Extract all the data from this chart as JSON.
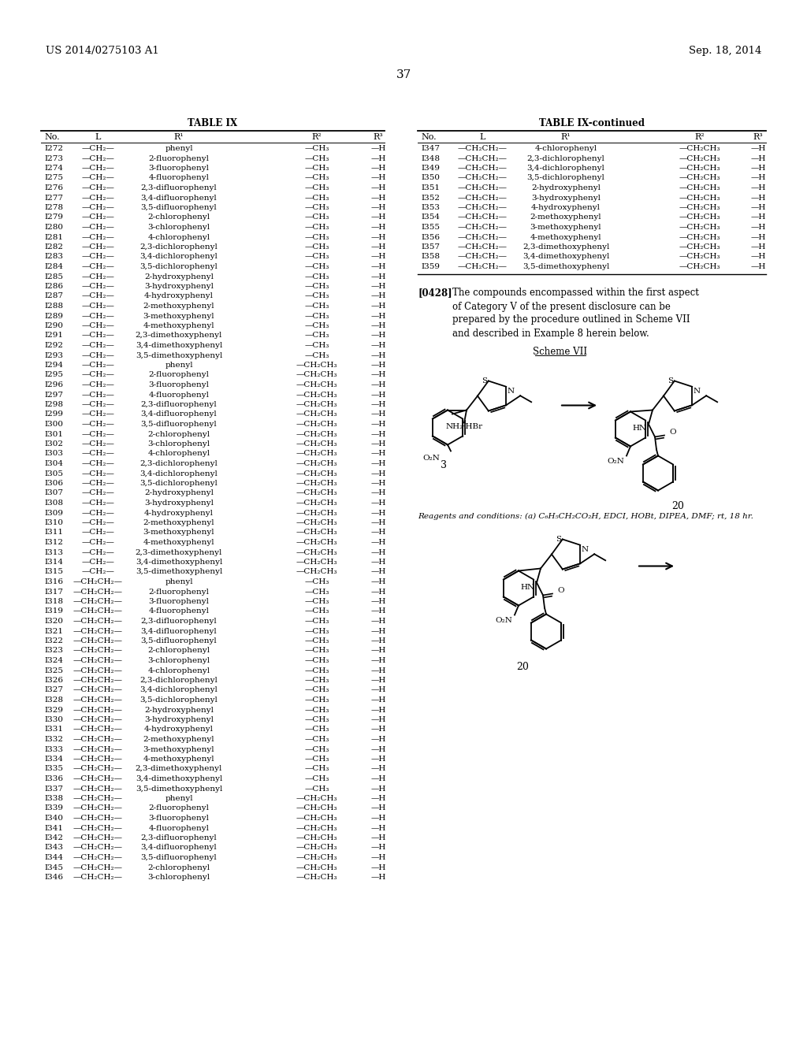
{
  "page_number": "37",
  "header_left": "US 2014/0275103 A1",
  "header_right": "Sep. 18, 2014",
  "table_left_title": "TABLE IX",
  "table_right_title": "TABLE IX-continued",
  "paragraph_num": "[0428]",
  "paragraph_text": "The compounds encompassed within the first aspect of Category V of the present disclosure can be prepared by the procedure outlined in Scheme VII and described in Example 8 herein below.",
  "scheme_label": "Scheme VII",
  "reagents_text": "Reagents and conditions: (a) C₆H₅CH₂CO₂H, EDCI, HOBt, DIPEA, DMF; rt, 18 hr.",
  "left_table_rows": [
    [
      "I272",
      "—CH₂—",
      "phenyl",
      "—CH₃",
      "—H"
    ],
    [
      "I273",
      "—CH₂—",
      "2-fluorophenyl",
      "—CH₃",
      "—H"
    ],
    [
      "I274",
      "—CH₂—",
      "3-fluorophenyl",
      "—CH₃",
      "—H"
    ],
    [
      "I275",
      "—CH₂—",
      "4-fluorophenyl",
      "—CH₃",
      "—H"
    ],
    [
      "I276",
      "—CH₂—",
      "2,3-difluorophenyl",
      "—CH₃",
      "—H"
    ],
    [
      "I277",
      "—CH₂—",
      "3,4-difluorophenyl",
      "—CH₃",
      "—H"
    ],
    [
      "I278",
      "—CH₂—",
      "3,5-difluorophenyl",
      "—CH₃",
      "—H"
    ],
    [
      "I279",
      "—CH₂—",
      "2-chlorophenyl",
      "—CH₃",
      "—H"
    ],
    [
      "I280",
      "—CH₂—",
      "3-chlorophenyl",
      "—CH₃",
      "—H"
    ],
    [
      "I281",
      "—CH₂—",
      "4-chlorophenyl",
      "—CH₃",
      "—H"
    ],
    [
      "I282",
      "—CH₂—",
      "2,3-dichlorophenyl",
      "—CH₃",
      "—H"
    ],
    [
      "I283",
      "—CH₂—",
      "3,4-dichlorophenyl",
      "—CH₃",
      "—H"
    ],
    [
      "I284",
      "—CH₂—",
      "3,5-dichlorophenyl",
      "—CH₃",
      "—H"
    ],
    [
      "I285",
      "—CH₂—",
      "2-hydroxyphenyl",
      "—CH₃",
      "—H"
    ],
    [
      "I286",
      "—CH₂—",
      "3-hydroxyphenyl",
      "—CH₃",
      "—H"
    ],
    [
      "I287",
      "—CH₂—",
      "4-hydroxyphenyl",
      "—CH₃",
      "—H"
    ],
    [
      "I288",
      "—CH₂—",
      "2-methoxyphenyl",
      "—CH₃",
      "—H"
    ],
    [
      "I289",
      "—CH₂—",
      "3-methoxyphenyl",
      "—CH₃",
      "—H"
    ],
    [
      "I290",
      "—CH₂—",
      "4-methoxyphenyl",
      "—CH₃",
      "—H"
    ],
    [
      "I291",
      "—CH₂—",
      "2,3-dimethoxyphenyl",
      "—CH₃",
      "—H"
    ],
    [
      "I292",
      "—CH₂—",
      "3,4-dimethoxyphenyl",
      "—CH₃",
      "—H"
    ],
    [
      "I293",
      "—CH₂—",
      "3,5-dimethoxyphenyl",
      "—CH₃",
      "—H"
    ],
    [
      "I294",
      "—CH₂—",
      "phenyl",
      "—CH₂CH₃",
      "—H"
    ],
    [
      "I295",
      "—CH₂—",
      "2-fluorophenyl",
      "—CH₂CH₃",
      "—H"
    ],
    [
      "I296",
      "—CH₂—",
      "3-fluorophenyl",
      "—CH₂CH₃",
      "—H"
    ],
    [
      "I297",
      "—CH₂—",
      "4-fluorophenyl",
      "—CH₂CH₃",
      "—H"
    ],
    [
      "I298",
      "—CH₂—",
      "2,3-difluorophenyl",
      "—CH₂CH₃",
      "—H"
    ],
    [
      "I299",
      "—CH₂—",
      "3,4-difluorophenyl",
      "—CH₂CH₃",
      "—H"
    ],
    [
      "I300",
      "—CH₂—",
      "3,5-difluorophenyl",
      "—CH₂CH₃",
      "—H"
    ],
    [
      "I301",
      "—CH₂—",
      "2-chlorophenyl",
      "—CH₂CH₃",
      "—H"
    ],
    [
      "I302",
      "—CH₂—",
      "3-chlorophenyl",
      "—CH₂CH₃",
      "—H"
    ],
    [
      "I303",
      "—CH₂—",
      "4-chlorophenyl",
      "—CH₂CH₃",
      "—H"
    ],
    [
      "I304",
      "—CH₂—",
      "2,3-dichlorophenyl",
      "—CH₂CH₃",
      "—H"
    ],
    [
      "I305",
      "—CH₂—",
      "3,4-dichlorophenyl",
      "—CH₂CH₃",
      "—H"
    ],
    [
      "I306",
      "—CH₂—",
      "3,5-dichlorophenyl",
      "—CH₂CH₃",
      "—H"
    ],
    [
      "I307",
      "—CH₂—",
      "2-hydroxyphenyl",
      "—CH₂CH₃",
      "—H"
    ],
    [
      "I308",
      "—CH₂—",
      "3-hydroxyphenyl",
      "—CH₂CH₃",
      "—H"
    ],
    [
      "I309",
      "—CH₂—",
      "4-hydroxyphenyl",
      "—CH₂CH₃",
      "—H"
    ],
    [
      "I310",
      "—CH₂—",
      "2-methoxyphenyl",
      "—CH₂CH₃",
      "—H"
    ],
    [
      "I311",
      "—CH₂—",
      "3-methoxyphenyl",
      "—CH₂CH₃",
      "—H"
    ],
    [
      "I312",
      "—CH₂—",
      "4-methoxyphenyl",
      "—CH₂CH₃",
      "—H"
    ],
    [
      "I313",
      "—CH₂—",
      "2,3-dimethoxyphenyl",
      "—CH₂CH₃",
      "—H"
    ],
    [
      "I314",
      "—CH₂—",
      "3,4-dimethoxyphenyl",
      "—CH₂CH₃",
      "—H"
    ],
    [
      "I315",
      "—CH₂—",
      "3,5-dimethoxyphenyl",
      "—CH₂CH₃",
      "—H"
    ],
    [
      "I316",
      "—CH₂CH₂—",
      "phenyl",
      "—CH₃",
      "—H"
    ],
    [
      "I317",
      "—CH₂CH₂—",
      "2-fluorophenyl",
      "—CH₃",
      "—H"
    ],
    [
      "I318",
      "—CH₂CH₂—",
      "3-fluorophenyl",
      "—CH₃",
      "—H"
    ],
    [
      "I319",
      "—CH₂CH₂—",
      "4-fluorophenyl",
      "—CH₃",
      "—H"
    ],
    [
      "I320",
      "—CH₂CH₂—",
      "2,3-difluorophenyl",
      "—CH₃",
      "—H"
    ],
    [
      "I321",
      "—CH₂CH₂—",
      "3,4-difluorophenyl",
      "—CH₃",
      "—H"
    ],
    [
      "I322",
      "—CH₂CH₂—",
      "3,5-difluorophenyl",
      "—CH₃",
      "—H"
    ],
    [
      "I323",
      "—CH₂CH₂—",
      "2-chlorophenyl",
      "—CH₃",
      "—H"
    ],
    [
      "I324",
      "—CH₂CH₂—",
      "3-chlorophenyl",
      "—CH₃",
      "—H"
    ],
    [
      "I325",
      "—CH₂CH₂—",
      "4-chlorophenyl",
      "—CH₃",
      "—H"
    ],
    [
      "I326",
      "—CH₂CH₂—",
      "2,3-dichlorophenyl",
      "—CH₃",
      "—H"
    ],
    [
      "I327",
      "—CH₂CH₂—",
      "3,4-dichlorophenyl",
      "—CH₃",
      "—H"
    ],
    [
      "I328",
      "—CH₂CH₂—",
      "3,5-dichlorophenyl",
      "—CH₃",
      "—H"
    ],
    [
      "I329",
      "—CH₂CH₂—",
      "2-hydroxyphenyl",
      "—CH₃",
      "—H"
    ],
    [
      "I330",
      "—CH₂CH₂—",
      "3-hydroxyphenyl",
      "—CH₃",
      "—H"
    ],
    [
      "I331",
      "—CH₂CH₂—",
      "4-hydroxyphenyl",
      "—CH₃",
      "—H"
    ],
    [
      "I332",
      "—CH₂CH₂—",
      "2-methoxyphenyl",
      "—CH₃",
      "—H"
    ],
    [
      "I333",
      "—CH₂CH₂—",
      "3-methoxyphenyl",
      "—CH₃",
      "—H"
    ],
    [
      "I334",
      "—CH₂CH₂—",
      "4-methoxyphenyl",
      "—CH₃",
      "—H"
    ],
    [
      "I335",
      "—CH₂CH₂—",
      "2,3-dimethoxyphenyl",
      "—CH₃",
      "—H"
    ],
    [
      "I336",
      "—CH₂CH₂—",
      "3,4-dimethoxyphenyl",
      "—CH₃",
      "—H"
    ],
    [
      "I337",
      "—CH₂CH₂—",
      "3,5-dimethoxyphenyl",
      "—CH₃",
      "—H"
    ],
    [
      "I338",
      "—CH₂CH₂—",
      "phenyl",
      "—CH₂CH₃",
      "—H"
    ],
    [
      "I339",
      "—CH₂CH₂—",
      "2-fluorophenyl",
      "—CH₂CH₃",
      "—H"
    ],
    [
      "I340",
      "—CH₂CH₂—",
      "3-fluorophenyl",
      "—CH₂CH₃",
      "—H"
    ],
    [
      "I341",
      "—CH₂CH₂—",
      "4-fluorophenyl",
      "—CH₂CH₃",
      "—H"
    ],
    [
      "I342",
      "—CH₂CH₂—",
      "2,3-difluorophenyl",
      "—CH₂CH₃",
      "—H"
    ],
    [
      "I343",
      "—CH₂CH₂—",
      "3,4-difluorophenyl",
      "—CH₂CH₃",
      "—H"
    ],
    [
      "I344",
      "—CH₂CH₂—",
      "3,5-difluorophenyl",
      "—CH₂CH₃",
      "—H"
    ],
    [
      "I345",
      "—CH₂CH₂—",
      "2-chlorophenyl",
      "—CH₂CH₃",
      "—H"
    ],
    [
      "I346",
      "—CH₂CH₂—",
      "3-chlorophenyl",
      "—CH₂CH₃",
      "—H"
    ]
  ],
  "right_table_rows": [
    [
      "I347",
      "—CH₂CH₂—",
      "4-chlorophenyl",
      "—CH₂CH₃",
      "—H"
    ],
    [
      "I348",
      "—CH₂CH₂—",
      "2,3-dichlorophenyl",
      "—CH₂CH₃",
      "—H"
    ],
    [
      "I349",
      "—CH₂CH₂—",
      "3,4-dichlorophenyl",
      "—CH₂CH₃",
      "—H"
    ],
    [
      "I350",
      "—CH₂CH₂—",
      "3,5-dichlorophenyl",
      "—CH₂CH₃",
      "—H"
    ],
    [
      "I351",
      "—CH₂CH₂—",
      "2-hydroxyphenyl",
      "—CH₂CH₃",
      "—H"
    ],
    [
      "I352",
      "—CH₂CH₂—",
      "3-hydroxyphenyl",
      "—CH₂CH₃",
      "—H"
    ],
    [
      "I353",
      "—CH₂CH₂—",
      "4-hydroxyphenyl",
      "—CH₂CH₃",
      "—H"
    ],
    [
      "I354",
      "—CH₂CH₂—",
      "2-methoxyphenyl",
      "—CH₂CH₃",
      "—H"
    ],
    [
      "I355",
      "—CH₂CH₂—",
      "3-methoxyphenyl",
      "—CH₂CH₃",
      "—H"
    ],
    [
      "I356",
      "—CH₂CH₂—",
      "4-methoxyphenyl",
      "—CH₂CH₃",
      "—H"
    ],
    [
      "I357",
      "—CH₂CH₂—",
      "2,3-dimethoxyphenyl",
      "—CH₂CH₃",
      "—H"
    ],
    [
      "I358",
      "—CH₂CH₂—",
      "3,4-dimethoxyphenyl",
      "—CH₂CH₃",
      "—H"
    ],
    [
      "I359",
      "—CH₂CH₂—",
      "3,5-dimethoxyphenyl",
      "—CH₂CH₃",
      "—H"
    ]
  ],
  "bg_color": "#ffffff"
}
